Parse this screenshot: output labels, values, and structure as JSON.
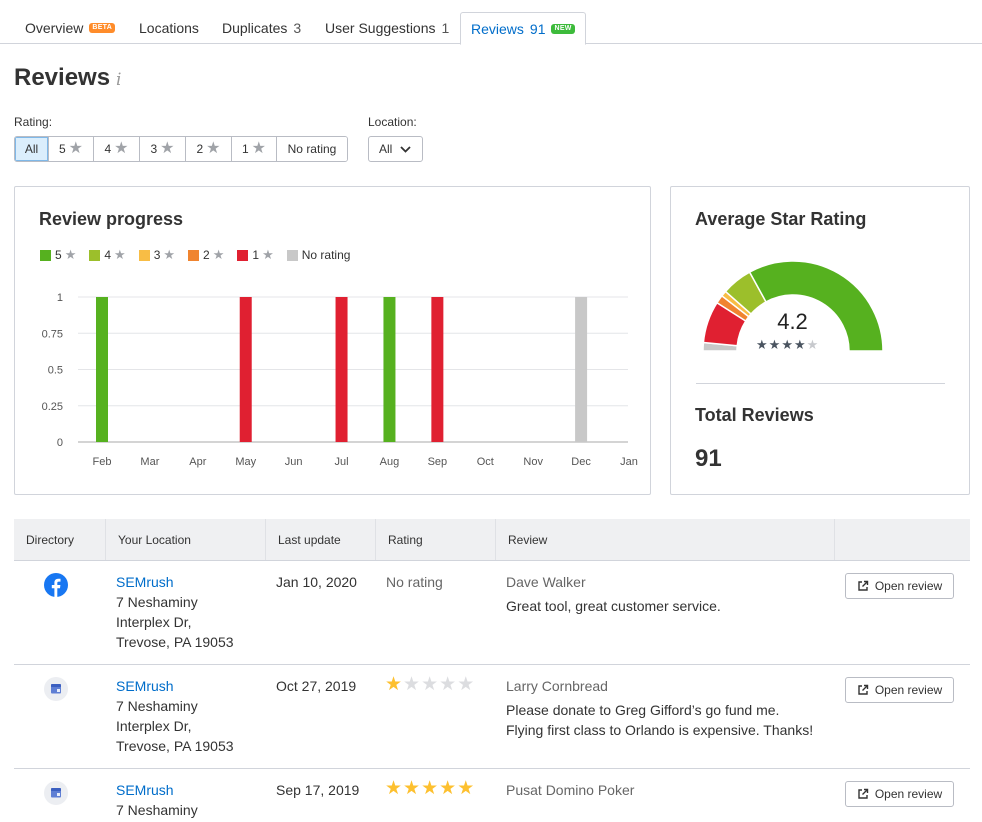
{
  "tabs": [
    {
      "label": "Overview",
      "badge": "BETA"
    },
    {
      "label": "Locations"
    },
    {
      "label": "Duplicates",
      "count": "3"
    },
    {
      "label": "User Suggestions",
      "count": "1"
    },
    {
      "label": "Reviews",
      "count": "91",
      "badge": "NEW"
    }
  ],
  "page_title": "Reviews",
  "info_glyph": "i",
  "filters": {
    "rating_label": "Rating:",
    "rating_options": [
      "All",
      "5",
      "4",
      "3",
      "2",
      "1",
      "No rating"
    ],
    "rating_selected": "All",
    "location_label": "Location:",
    "location_value": "All"
  },
  "progress_card": {
    "title": "Review progress",
    "legend": [
      "5",
      "4",
      "3",
      "2",
      "1",
      "No rating"
    ]
  },
  "colors": {
    "r5": "#56b11f",
    "r4": "#9cbf2b",
    "r3": "#f8bd45",
    "r2": "#f0842f",
    "r1": "#e02031",
    "none": "#c8c8c8",
    "accent": "#006dca"
  },
  "chart_data": {
    "type": "bar",
    "title": "Review progress",
    "categories": [
      "Feb",
      "Mar",
      "Apr",
      "May",
      "Jun",
      "Jul",
      "Aug",
      "Sep",
      "Oct",
      "Nov",
      "Dec",
      "Jan"
    ],
    "series": [
      {
        "name": "5",
        "values": [
          1,
          0,
          0,
          0,
          0,
          0,
          1,
          0,
          0,
          0,
          0,
          0
        ]
      },
      {
        "name": "4",
        "values": [
          0,
          0,
          0,
          0,
          0,
          0,
          0,
          0,
          0,
          0,
          0,
          0
        ]
      },
      {
        "name": "3",
        "values": [
          0,
          0,
          0,
          0,
          0,
          0,
          0,
          0,
          0,
          0,
          0,
          0
        ]
      },
      {
        "name": "2",
        "values": [
          0,
          0,
          0,
          0,
          0,
          0,
          0,
          0,
          0,
          0,
          0,
          0
        ]
      },
      {
        "name": "1",
        "values": [
          0,
          0,
          0,
          1,
          0,
          1,
          0,
          1,
          0,
          0,
          0,
          0
        ]
      },
      {
        "name": "No rating",
        "values": [
          0,
          0,
          0,
          0,
          0,
          0,
          0,
          0,
          0,
          0,
          1,
          0
        ]
      }
    ],
    "yticks": [
      "0",
      "0.25",
      "0.5",
      "0.75",
      "1"
    ],
    "ylim": [
      0,
      1
    ],
    "grid": true,
    "legend": "top-left"
  },
  "avg_card": {
    "title": "Average Star Rating",
    "value": "4.2",
    "stars_filled": 4,
    "stars_total": 5,
    "gauge_segments": [
      {
        "rating": "1",
        "share": 0.15
      },
      {
        "rating": "2",
        "share": 0.03
      },
      {
        "rating": "3",
        "share": 0.02
      },
      {
        "rating": "4",
        "share": 0.11
      },
      {
        "rating": "5",
        "share": 0.66
      },
      {
        "rating": "No rating",
        "share": 0.03
      }
    ],
    "total_title": "Total Reviews",
    "total_value": "91"
  },
  "table": {
    "headers": [
      "Directory",
      "Your Location",
      "Last update",
      "Rating",
      "Review",
      ""
    ],
    "rows": [
      {
        "directory_icon": "facebook-icon",
        "location_name": "SEMrush",
        "address": [
          "7 Neshaminy",
          "Interplex Dr,",
          "Trevose, PA 19053"
        ],
        "date": "Jan 10, 2020",
        "rating_text": "No rating",
        "stars": 0,
        "author": "Dave Walker",
        "text": [
          "Great tool, great customer service."
        ],
        "button": "Open review"
      },
      {
        "directory_icon": "google-my-business-icon",
        "location_name": "SEMrush",
        "address": [
          "7 Neshaminy",
          "Interplex Dr,",
          "Trevose, PA 19053"
        ],
        "date": "Oct 27, 2019",
        "stars": 1,
        "author": "Larry Cornbread",
        "text": [
          "Please donate to Greg Gifford’s go fund me.",
          "Flying first class to Orlando is expensive. Thanks!"
        ],
        "button": "Open review"
      },
      {
        "directory_icon": "google-my-business-icon",
        "location_name": "SEMrush",
        "address": [
          "7 Neshaminy"
        ],
        "date": "Sep 17, 2019",
        "stars": 5,
        "author": "Pusat Domino Poker",
        "text": [],
        "button": "Open review"
      }
    ]
  }
}
